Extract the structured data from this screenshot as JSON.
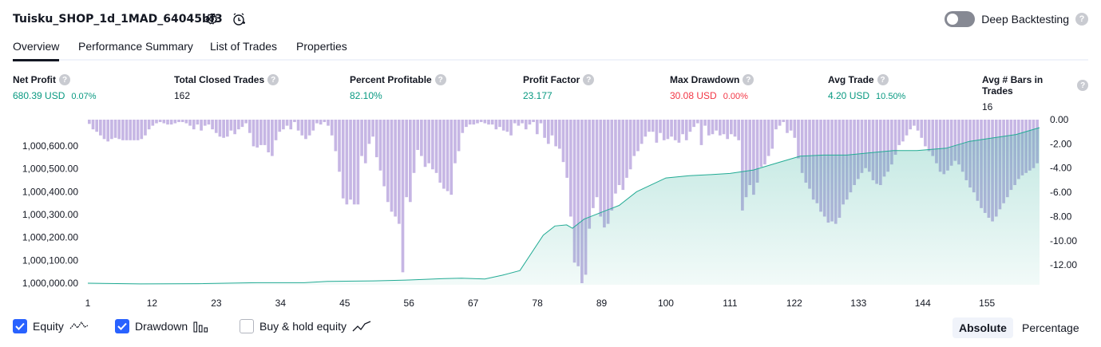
{
  "header": {
    "title": "Tuisku_SHOP_1d_1MAD_64045bf3",
    "deep_backtesting_label": "Deep Backtesting",
    "help_glyph": "?"
  },
  "tabs": [
    {
      "label": "Overview",
      "active": true
    },
    {
      "label": "Performance Summary",
      "active": false
    },
    {
      "label": "List of Trades",
      "active": false
    },
    {
      "label": "Properties",
      "active": false
    }
  ],
  "metrics": [
    {
      "label": "Net Profit",
      "value": "680.39 USD",
      "sub": "0.07%",
      "tone": "pos"
    },
    {
      "label": "Total Closed Trades",
      "value": "162",
      "sub": "",
      "tone": "neu"
    },
    {
      "label": "Percent Profitable",
      "value": "82.10%",
      "sub": "",
      "tone": "pos"
    },
    {
      "label": "Profit Factor",
      "value": "23.177",
      "sub": "",
      "tone": "pos"
    },
    {
      "label": "Max Drawdown",
      "value": "30.08 USD",
      "sub": "0.00%",
      "tone": "neg"
    },
    {
      "label": "Avg Trade",
      "value": "4.20 USD",
      "sub": "10.50%",
      "tone": "pos"
    },
    {
      "label": "Avg # Bars in Trades",
      "value": "16",
      "sub": "",
      "tone": "neu"
    }
  ],
  "colors": {
    "equity_line": "#22ab94",
    "equity_fill": "#22ab94",
    "drawdown_bar": "#b39ddb",
    "accent": "#2962ff",
    "positive": "#089981",
    "negative": "#f23645"
  },
  "chart_data": {
    "type": "area",
    "x_ticks": [
      "1",
      "12",
      "23",
      "34",
      "45",
      "56",
      "67",
      "78",
      "89",
      "100",
      "111",
      "122",
      "133",
      "144",
      "155"
    ],
    "left_axis": {
      "ticks": [
        "1,000,000.00",
        "1,000,100.00",
        "1,000,200.00",
        "1,000,300.00",
        "1,000,400.00",
        "1,000,500.00",
        "1,000,600.00"
      ],
      "range": [
        1000000,
        1000680
      ]
    },
    "right_axis": {
      "ticks": [
        "0.00",
        "-2.00",
        "-4.00",
        "-6.00",
        "-8.00",
        "-10.00",
        "-12.00"
      ],
      "range": [
        -13.5,
        0
      ]
    },
    "series": [
      {
        "name": "Equity",
        "kind": "area",
        "points": [
          [
            1,
            1000000
          ],
          [
            10,
            999997
          ],
          [
            20,
            999998
          ],
          [
            30,
            1000002
          ],
          [
            38,
            1000002
          ],
          [
            42,
            1000008
          ],
          [
            50,
            1000010
          ],
          [
            56,
            1000014
          ],
          [
            62,
            1000020
          ],
          [
            65,
            1000022
          ],
          [
            69,
            1000018
          ],
          [
            72,
            1000035
          ],
          [
            75,
            1000055
          ],
          [
            79,
            1000210
          ],
          [
            81,
            1000250
          ],
          [
            83,
            1000255
          ],
          [
            84,
            1000240
          ],
          [
            86,
            1000280
          ],
          [
            90,
            1000320
          ],
          [
            92,
            1000340
          ],
          [
            95,
            1000400
          ],
          [
            100,
            1000460
          ],
          [
            104,
            1000470
          ],
          [
            108,
            1000475
          ],
          [
            111,
            1000480
          ],
          [
            115,
            1000495
          ],
          [
            119,
            1000525
          ],
          [
            123,
            1000555
          ],
          [
            127,
            1000560
          ],
          [
            131,
            1000560
          ],
          [
            135,
            1000570
          ],
          [
            139,
            1000580
          ],
          [
            143,
            1000580
          ],
          [
            148,
            1000590
          ],
          [
            152,
            1000620
          ],
          [
            156,
            1000635
          ],
          [
            160,
            1000650
          ],
          [
            164,
            1000680
          ]
        ]
      },
      {
        "name": "Drawdown",
        "kind": "bar",
        "values": [
          -0.35,
          -0.8,
          -1.0,
          -1.3,
          -1.6,
          -1.8,
          -1.6,
          -1.5,
          -1.6,
          -1.7,
          -1.7,
          -1.7,
          -1.7,
          -1.7,
          -1.6,
          -1.3,
          -0.8,
          -0.5,
          -0.3,
          -0.2,
          -0.3,
          -0.4,
          -0.4,
          -0.3,
          -0.2,
          -0.2,
          -0.3,
          -0.5,
          -0.8,
          -0.4,
          -0.9,
          -0.5,
          -0.4,
          -0.8,
          -1.1,
          -1.4,
          -1.5,
          -1.4,
          -0.9,
          -1.2,
          -0.8,
          -0.6,
          -0.3,
          -1.1,
          -2.2,
          -2.3,
          -2.1,
          -2.1,
          -2.7,
          -3.0,
          -1.7,
          -1.0,
          -0.8,
          -0.5,
          -0.8,
          -0.2,
          -0.9,
          -1.3,
          -1.6,
          -1.3,
          -0.9,
          -0.3,
          -0.4,
          -0.2,
          -0.5,
          -1.3,
          -2.6,
          -4.3,
          -6.5,
          -7.0,
          -6.6,
          -7.0,
          -7.0,
          -3.0,
          -3.6,
          -2.0,
          -1.4,
          -3.1,
          -4.2,
          -5.5,
          -6.8,
          -7.6,
          -8.0,
          -8.6,
          -12.6,
          -6.4,
          -6.8,
          -4.4,
          -2.5,
          -3.0,
          -3.9,
          -3.6,
          -4.1,
          -4.4,
          -5.2,
          -5.7,
          -5.9,
          -6.2,
          -3.6,
          -2.6,
          -1.1,
          -0.6,
          -0.4,
          -0.4,
          -0.3,
          -0.2,
          -0.3,
          -0.4,
          -0.4,
          -0.8,
          -0.6,
          -0.9,
          -1.0,
          -1.3,
          -0.3,
          -0.5,
          -0.3,
          -0.8,
          -0.4,
          -0.2,
          -1.2,
          -0.3,
          -1.5,
          -2.0,
          -1.3,
          -2.2,
          -2.4,
          -3.5,
          -4.8,
          -8.0,
          -11.8,
          -12.1,
          -13.5,
          -12.8,
          -9.0,
          -7.3,
          -6.4,
          -8.0,
          -8.9,
          -8.6,
          -7.5,
          -6.1,
          -5.4,
          -5.8,
          -4.8,
          -4.1,
          -3.0,
          -2.6,
          -2.0,
          -1.4,
          -1.0,
          -1.0,
          -1.9,
          -1.1,
          -1.7,
          -1.6,
          -1.4,
          -1.7,
          -1.9,
          -1.2,
          -1.7,
          -1.0,
          -0.6,
          -0.3,
          -2.1,
          -0.5,
          -1.3,
          -1.2,
          -0.9,
          -1.3,
          -1.2,
          -1.6,
          -1.2,
          -1.4,
          -1.7,
          -7.5,
          -6.4,
          -5.4,
          -6.2,
          -5.2,
          -3.9,
          -3.7,
          -3.0,
          -2.4,
          -0.8,
          -0.5,
          -0.2,
          -1.1,
          -0.9,
          -1.5,
          -3.2,
          -4.4,
          -5.2,
          -5.7,
          -6.6,
          -6.9,
          -7.6,
          -8.0,
          -8.5,
          -8.4,
          -8.6,
          -8.1,
          -7.0,
          -6.6,
          -6.0,
          -5.4,
          -4.9,
          -4.4,
          -4.0,
          -4.3,
          -5.0,
          -5.3,
          -5.4,
          -4.7,
          -4.3,
          -3.7,
          -2.9,
          -2.1,
          -1.8,
          -1.3,
          -0.8,
          -0.5,
          -0.9,
          -1.5,
          -2.2,
          -2.6,
          -3.0,
          -3.6,
          -4.3,
          -4.5,
          -4.2,
          -3.8,
          -3.4,
          -3.7,
          -4.3,
          -5.0,
          -5.6,
          -6.0,
          -6.7,
          -7.3,
          -7.7,
          -8.1,
          -8.4,
          -8.0,
          -7.4,
          -6.9,
          -6.4,
          -5.8,
          -5.4,
          -4.9,
          -4.6,
          -4.4,
          -4.2,
          -4.0,
          -3.6
        ]
      }
    ]
  },
  "legend": {
    "equity_label": "Equity",
    "drawdown_label": "Drawdown",
    "buyhold_label": "Buy & hold equity",
    "absolute_label": "Absolute",
    "percentage_label": "Percentage"
  }
}
